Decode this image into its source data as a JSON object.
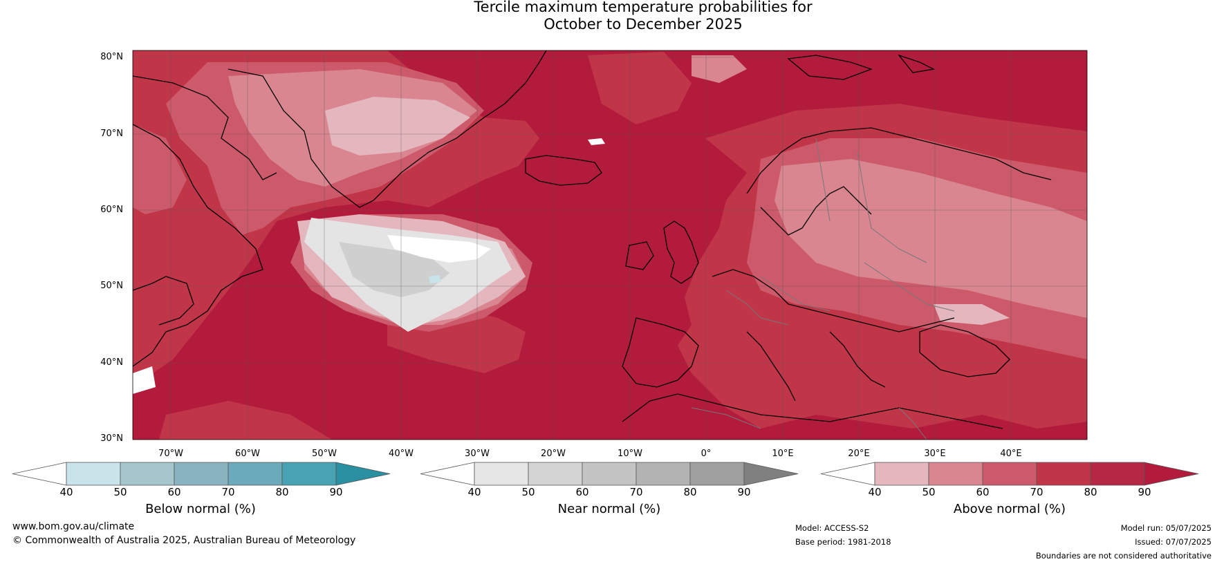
{
  "title": {
    "line1": "Tercile maximum temperature probabilities for",
    "line2": "October to December 2025"
  },
  "map": {
    "lat_labels": [
      "80°N",
      "70°N",
      "60°N",
      "50°N",
      "40°N",
      "30°N"
    ],
    "lon_labels": [
      "70°W",
      "60°W",
      "50°W",
      "40°W",
      "30°W",
      "20°W",
      "10°W",
      "0°",
      "10°E",
      "20°E",
      "30°E",
      "40°E"
    ],
    "colors": {
      "above_90": "#b31b3c",
      "above_80": "#c13549",
      "above_70": "#cc5a6a",
      "above_60": "#d98691",
      "above_50": "#e4b7bf",
      "near_60": "#e4e4e4",
      "near_70": "#cfcfcf",
      "white": "#ffffff",
      "below_50": "#c9e3ea"
    }
  },
  "colorbars": [
    {
      "title": "Below normal (%)",
      "ticks": [
        "40",
        "50",
        "60",
        "70",
        "80",
        "90"
      ],
      "colors": [
        "#ffffff",
        "#c9e3ea",
        "#a6c6cd",
        "#89b3c0",
        "#6aaabb",
        "#47a3b4",
        "#2a8fa0"
      ]
    },
    {
      "title": "Near normal (%)",
      "ticks": [
        "40",
        "50",
        "60",
        "70",
        "80",
        "90"
      ],
      "colors": [
        "#ffffff",
        "#e6e6e6",
        "#d4d4d4",
        "#c4c4c4",
        "#b3b3b3",
        "#9f9f9f",
        "#808080"
      ]
    },
    {
      "title": "Above normal (%)",
      "ticks": [
        "40",
        "50",
        "60",
        "70",
        "80",
        "90"
      ],
      "colors": [
        "#ffffff",
        "#e4b7bf",
        "#d98691",
        "#cc5a6a",
        "#c13549",
        "#b52744",
        "#b31b3c"
      ]
    }
  ],
  "footer": {
    "website": "www.bom.gov.au/climate",
    "copyright": "© Commonwealth of Australia 2025, Australian Bureau of Meteorology",
    "model": "Model: ACCESS-S2",
    "base_period": "Base period: 1981-2018",
    "model_run": "Model run: 05/07/2025",
    "issued": "Issued: 07/07/2025",
    "disclaimer": "Boundaries are not considered authoritative"
  }
}
